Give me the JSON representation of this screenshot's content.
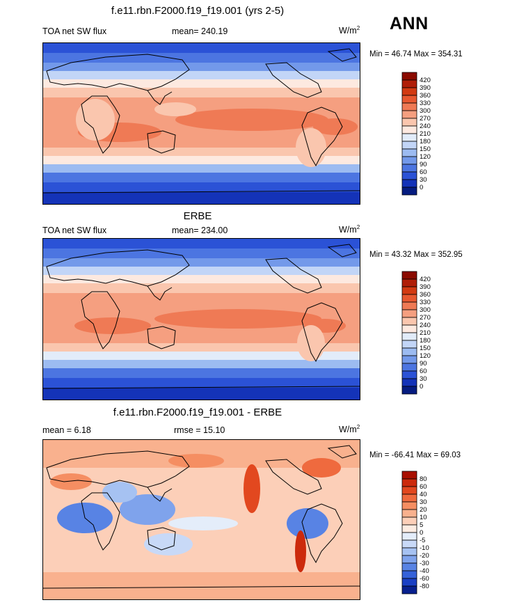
{
  "season": "ANN",
  "panels": [
    {
      "id": "model",
      "title": "f.e11.rbn.F2000.f19_f19.001 (yrs 2-5)",
      "left_label": "TOA net SW flux",
      "center_label": "mean= 240.19",
      "units": "W/m",
      "units_sup": "2",
      "minmax": "Min =  46.74 Max = 354.31",
      "kind": "abs"
    },
    {
      "id": "obs",
      "title": "ERBE",
      "left_label": "TOA net SW flux",
      "center_label": "mean= 234.00",
      "units": "W/m",
      "units_sup": "2",
      "minmax": "Min =  43.32 Max = 352.95",
      "kind": "abs"
    },
    {
      "id": "diff",
      "title": "f.e11.rbn.F2000.f19_f19.001 - ERBE",
      "left_label": "mean =   6.18",
      "center_label": "rmse =  15.10",
      "units": "W/m",
      "units_sup": "2",
      "minmax": "Min = -66.41 Max =  69.03",
      "kind": "diff"
    }
  ],
  "colorbars": {
    "abs": {
      "labels": [
        "420",
        "390",
        "360",
        "330",
        "300",
        "270",
        "240",
        "210",
        "180",
        "150",
        "120",
        "90",
        "60",
        "30",
        "0"
      ],
      "colors": [
        "#8a0b00",
        "#b01e08",
        "#d23a12",
        "#e75830",
        "#ef7a55",
        "#f59f80",
        "#fac6ae",
        "#fde9e0",
        "#e2ecfa",
        "#c2d5f7",
        "#9cbbf1",
        "#7399ea",
        "#4c75e1",
        "#2b52d6",
        "#1433b8",
        "#061c80"
      ]
    },
    "diff": {
      "labels": [
        "80",
        "60",
        "40",
        "30",
        "20",
        "10",
        "5",
        "0",
        "-5",
        "-10",
        "-20",
        "-30",
        "-40",
        "-60",
        "-80"
      ],
      "colors": [
        "#a80f00",
        "#cc2a0c",
        "#e2481f",
        "#ef6a3e",
        "#f58e62",
        "#f9b18e",
        "#fccfb8",
        "#fdece2",
        "#e4edfa",
        "#c8d9f7",
        "#a6c2f2",
        "#7fa3ec",
        "#5883e4",
        "#3562d9",
        "#1a40c4",
        "#08208e"
      ]
    }
  }
}
